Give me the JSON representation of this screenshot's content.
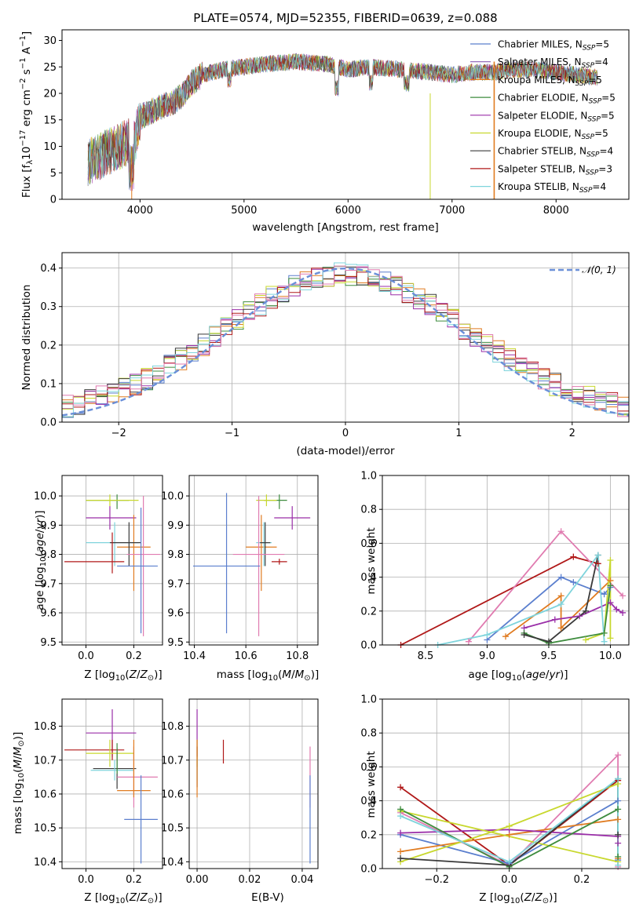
{
  "chart_data": [
    {
      "id": "spectrum",
      "type": "line",
      "title": "PLATE=0574, MJD=52355, FIBERID=0639, z=0.088",
      "xlabel": "wavelength [Angstrom, rest frame]",
      "ylabel": "Flux [f_λ10^-17 erg cm^-2 s^-1 A^-1]",
      "xlim": [
        3250,
        8700
      ],
      "ylim": [
        0,
        32
      ],
      "xticks": [
        4000,
        5000,
        6000,
        7000,
        8000
      ],
      "yticks": [
        0,
        5,
        10,
        15,
        20,
        25,
        30
      ],
      "grid": false,
      "legend_position": "top-right",
      "data_color": "#777777",
      "continuum": {
        "x": [
          3500,
          3600,
          3700,
          3800,
          3900,
          3950,
          4000,
          4100,
          4200,
          4300,
          4400,
          4500,
          4600,
          4800,
          5000,
          5200,
          5500,
          5800,
          6000,
          6200,
          6500,
          6800,
          7000,
          7200,
          7400,
          7600,
          7800,
          8000,
          8200,
          8400
        ],
        "y": [
          7,
          8,
          9,
          10,
          11,
          11,
          15.5,
          16.5,
          17.5,
          18,
          19.5,
          22,
          23.5,
          24.5,
          25,
          25.5,
          26,
          25.5,
          24.5,
          25,
          24.5,
          24,
          23.5,
          24,
          24,
          24.5,
          24.5,
          24,
          23.5,
          23
        ]
      },
      "series": [
        {
          "name": "Chabrier MILES, N_SSP=5",
          "color": "#5b7fce"
        },
        {
          "name": "Salpeter MILES, N_SSP=4",
          "color": "#8a5bb5"
        },
        {
          "name": "Kroupa MILES, N_SSP=5",
          "color": "#e07b20"
        },
        {
          "name": "Chabrier ELODIE, N_SSP=5",
          "color": "#3e8c3e"
        },
        {
          "name": "Salpeter ELODIE, N_SSP=5",
          "color": "#9a2ea8"
        },
        {
          "name": "Kroupa ELODIE, N_SSP=5",
          "color": "#c8d82e"
        },
        {
          "name": "Chabrier STELIB, N_SSP=4",
          "color": "#3a3a3a"
        },
        {
          "name": "Salpeter STELIB, N_SSP=3",
          "color": "#b01818"
        },
        {
          "name": "Kroupa STELIB, N_SSP=4",
          "color": "#7fd4dc"
        }
      ]
    },
    {
      "id": "residuals",
      "type": "histogram",
      "xlabel": "(data-model)/error",
      "ylabel": "Normed distribution",
      "xlim": [
        -2.5,
        2.5
      ],
      "ylim": [
        0,
        0.44
      ],
      "xticks": [
        -2,
        -1,
        0,
        1,
        2
      ],
      "yticks": [
        0.0,
        0.1,
        0.2,
        0.3,
        0.4
      ],
      "grid": true,
      "legend_position": "top-right",
      "reference_curve": {
        "name": "N(0,1)",
        "color": "#6a8fd8",
        "style": "dashed"
      },
      "bin_width": 0.1,
      "hist_colors": [
        "#5b7fce",
        "#e07b20",
        "#3e8c3e",
        "#9a2ea8",
        "#c8d82e",
        "#3a3a3a",
        "#b01818",
        "#7fd4dc",
        "#e07bb0"
      ]
    },
    {
      "id": "age-vs-Z",
      "type": "errorbar",
      "xlabel": "Z [log10(Z/Z☉)]",
      "ylabel": "age  [log10(age/yr)]",
      "xlim": [
        -0.1,
        0.32
      ],
      "ylim": [
        9.49,
        10.07
      ],
      "xticks": [
        0.0,
        0.2
      ],
      "yticks": [
        9.5,
        9.6,
        9.7,
        9.8,
        9.9,
        10.0
      ],
      "grid": true,
      "points": [
        {
          "x": 0.13,
          "y": 9.985,
          "xerr": [
            0.13,
            0.05
          ],
          "yerr": [
            0.03,
            0.02
          ],
          "color": "#3e8c3e"
        },
        {
          "x": 0.1,
          "y": 9.985,
          "xerr": [
            0.1,
            0.12
          ],
          "yerr": [
            0.02,
            0.02
          ],
          "color": "#c8d82e"
        },
        {
          "x": 0.1,
          "y": 9.925,
          "xerr": [
            0.1,
            0.11
          ],
          "yerr": [
            0.04,
            0.04
          ],
          "color": "#9a2ea8"
        },
        {
          "x": 0.2,
          "y": 9.825,
          "xerr": [
            0.07,
            0.07
          ],
          "yerr": [
            0.15,
            0.11
          ],
          "color": "#e07b20"
        },
        {
          "x": 0.12,
          "y": 9.84,
          "xerr": [
            0.12,
            0.1
          ],
          "yerr": [
            0.08,
            0.07
          ],
          "color": "#7fd4dc"
        },
        {
          "x": 0.18,
          "y": 9.84,
          "xerr": [
            0.08,
            0.05
          ],
          "yerr": [
            0.08,
            0.07
          ],
          "color": "#3a3a3a"
        },
        {
          "x": 0.24,
          "y": 9.8,
          "xerr": [
            0.07,
            0.07
          ],
          "yerr": [
            0.28,
            0.2
          ],
          "color": "#e07bb0"
        },
        {
          "x": 0.23,
          "y": 9.76,
          "xerr": [
            0.1,
            0.07
          ],
          "yerr": [
            0.23,
            0.2
          ],
          "color": "#5b7fce"
        },
        {
          "x": 0.11,
          "y": 9.775,
          "xerr": [
            0.2,
            0.05
          ],
          "yerr": [
            0.04,
            0.1
          ],
          "color": "#b01818"
        }
      ]
    },
    {
      "id": "age-vs-mass",
      "type": "errorbar",
      "xlabel": "mass [log10(M/M☉)]",
      "xlim": [
        10.38,
        10.88
      ],
      "ylim": [
        9.49,
        10.07
      ],
      "xticks": [
        10.4,
        10.6,
        10.8
      ],
      "yticks": [
        9.5,
        9.6,
        9.7,
        9.8,
        9.9,
        10.0
      ],
      "grid": true,
      "points": [
        {
          "x": 10.73,
          "y": 9.985,
          "xerr": [
            0.06,
            0.03
          ],
          "yerr": [
            0.03,
            0.02
          ],
          "color": "#3e8c3e"
        },
        {
          "x": 10.68,
          "y": 9.985,
          "xerr": [
            0.04,
            0.04
          ],
          "yerr": [
            0.02,
            0.02
          ],
          "color": "#c8d82e"
        },
        {
          "x": 10.78,
          "y": 9.925,
          "xerr": [
            0.07,
            0.07
          ],
          "yerr": [
            0.04,
            0.04
          ],
          "color": "#9a2ea8"
        },
        {
          "x": 10.66,
          "y": 9.825,
          "xerr": [
            0.06,
            0.06
          ],
          "yerr": [
            0.15,
            0.11
          ],
          "color": "#e07b20"
        },
        {
          "x": 10.67,
          "y": 9.84,
          "xerr": [
            0.03,
            0.03
          ],
          "yerr": [
            0.08,
            0.07
          ],
          "color": "#7fd4dc"
        },
        {
          "x": 10.675,
          "y": 9.84,
          "xerr": [
            0.02,
            0.02
          ],
          "yerr": [
            0.08,
            0.07
          ],
          "color": "#3a3a3a"
        },
        {
          "x": 10.65,
          "y": 9.8,
          "xerr": [
            0.1,
            0.1
          ],
          "yerr": [
            0.28,
            0.2
          ],
          "color": "#e07bb0"
        },
        {
          "x": 10.525,
          "y": 9.76,
          "xerr": [
            0.13,
            0.13
          ],
          "yerr": [
            0.23,
            0.25
          ],
          "color": "#5b7fce"
        },
        {
          "x": 10.73,
          "y": 9.775,
          "xerr": [
            0.03,
            0.03
          ],
          "yerr": [
            0.01,
            0.01
          ],
          "color": "#b01818"
        }
      ]
    },
    {
      "id": "weight-vs-age",
      "type": "line",
      "xlabel": "age  [log10(age/yr)]",
      "ylabel": "mass weight",
      "xlim": [
        8.15,
        10.15
      ],
      "ylim": [
        0,
        1.0
      ],
      "xticks": [
        8.5,
        9.0,
        9.5,
        10.0
      ],
      "yticks": [
        0.0,
        0.2,
        0.4,
        0.6,
        0.8,
        1.0
      ],
      "grid": true,
      "lines": [
        {
          "color": "#b01818",
          "x": [
            8.3,
            9.7,
            9.9
          ],
          "y": [
            0.0,
            0.52,
            0.48
          ]
        },
        {
          "color": "#e07bb0",
          "x": [
            8.85,
            9.6,
            10.1
          ],
          "y": [
            0.02,
            0.67,
            0.29
          ]
        },
        {
          "color": "#5b7fce",
          "x": [
            9.0,
            9.6,
            9.7,
            9.95,
            10.0
          ],
          "y": [
            0.03,
            0.4,
            0.37,
            0.3,
            0.34
          ]
        },
        {
          "color": "#e07b20",
          "x": [
            9.15,
            9.6,
            9.6,
            10.0
          ],
          "y": [
            0.05,
            0.29,
            0.1,
            0.38
          ]
        },
        {
          "color": "#9a2ea8",
          "x": [
            9.3,
            9.55,
            9.75,
            10.0,
            10.05,
            10.1
          ],
          "y": [
            0.1,
            0.15,
            0.17,
            0.25,
            0.21,
            0.19
          ]
        },
        {
          "color": "#c8d82e",
          "x": [
            9.8,
            9.95,
            10.0,
            10.0
          ],
          "y": [
            0.03,
            0.07,
            0.5,
            0.04
          ]
        },
        {
          "color": "#3e8c3e",
          "x": [
            9.3,
            9.5,
            9.95,
            10.0
          ],
          "y": [
            0.07,
            0.01,
            0.07,
            0.35
          ]
        },
        {
          "color": "#3a3a3a",
          "x": [
            9.3,
            9.5,
            9.8,
            9.9
          ],
          "y": [
            0.06,
            0.02,
            0.2,
            0.53
          ]
        },
        {
          "color": "#7fd4dc",
          "x": [
            8.6,
            9.0,
            9.6,
            9.9,
            9.95
          ],
          "y": [
            0.0,
            0.06,
            0.24,
            0.53,
            0.02
          ]
        }
      ]
    },
    {
      "id": "mass-vs-Z",
      "type": "errorbar",
      "xlabel": "Z [log10(Z/Z☉)]",
      "ylabel": "mass [log10(M/M☉)]",
      "xlim": [
        -0.1,
        0.32
      ],
      "ylim": [
        10.38,
        10.88
      ],
      "xticks": [
        0.0,
        0.2
      ],
      "yticks": [
        10.4,
        10.5,
        10.6,
        10.7,
        10.8
      ],
      "grid": true,
      "points": [
        {
          "x": 0.11,
          "y": 10.78,
          "xerr": [
            0.11,
            0.1
          ],
          "yerr": [
            0.07,
            0.07
          ],
          "color": "#9a2ea8"
        },
        {
          "x": 0.11,
          "y": 10.73,
          "xerr": [
            0.2,
            0.05
          ],
          "yerr": [
            0.03,
            0.03
          ],
          "color": "#b01818"
        },
        {
          "x": 0.1,
          "y": 10.72,
          "xerr": [
            0.1,
            0.1
          ],
          "yerr": [
            0.04,
            0.04
          ],
          "color": "#c8d82e"
        },
        {
          "x": 0.13,
          "y": 10.675,
          "xerr": [
            0.1,
            0.08
          ],
          "yerr": [
            0.06,
            0.06
          ],
          "color": "#3a3a3a"
        },
        {
          "x": 0.12,
          "y": 10.67,
          "xerr": [
            0.1,
            0.08
          ],
          "yerr": [
            0.03,
            0.03
          ],
          "color": "#7fd4dc"
        },
        {
          "x": 0.2,
          "y": 10.65,
          "xerr": [
            0.07,
            0.1
          ],
          "yerr": [
            0.09,
            0.09
          ],
          "color": "#e07bb0"
        },
        {
          "x": 0.2,
          "y": 10.61,
          "xerr": [
            0.07,
            0.07
          ],
          "yerr": [
            0.02,
            0.15
          ],
          "color": "#e07b20"
        },
        {
          "x": 0.23,
          "y": 10.525,
          "xerr": [
            0.07,
            0.07
          ],
          "yerr": [
            0.13,
            0.13
          ],
          "color": "#5b7fce"
        },
        {
          "x": 0.13,
          "y": 10.72,
          "xerr": [
            0.0,
            0.0
          ],
          "yerr": [
            0.06,
            0.03
          ],
          "color": "#3e8c3e"
        }
      ]
    },
    {
      "id": "mass-vs-ebv",
      "type": "errorbar",
      "xlabel": "E(B-V)",
      "xlim": [
        -0.003,
        0.046
      ],
      "ylim": [
        10.38,
        10.88
      ],
      "xticks": [
        0.0,
        0.02,
        0.04
      ],
      "yticks": [
        10.4,
        10.5,
        10.6,
        10.7,
        10.8
      ],
      "grid": true,
      "points": [
        {
          "x": 0.0,
          "y": 10.78,
          "xerr": [
            0,
            0
          ],
          "yerr": [
            0.07,
            0.07
          ],
          "color": "#9a2ea8"
        },
        {
          "x": 0.0,
          "y": 10.72,
          "xerr": [
            0,
            0
          ],
          "yerr": [
            0.04,
            0.04
          ],
          "color": "#c8d82e"
        },
        {
          "x": 0.0,
          "y": 10.68,
          "xerr": [
            0,
            0
          ],
          "yerr": [
            0.06,
            0.06
          ],
          "color": "#3a3a3a"
        },
        {
          "x": 0.0,
          "y": 10.67,
          "xerr": [
            0,
            0
          ],
          "yerr": [
            0.03,
            0.03
          ],
          "color": "#7fd4dc"
        },
        {
          "x": 0.0,
          "y": 10.61,
          "xerr": [
            0,
            0
          ],
          "yerr": [
            0.02,
            0.15
          ],
          "color": "#e07b20"
        },
        {
          "x": 0.01,
          "y": 10.725,
          "xerr": [
            0,
            0
          ],
          "yerr": [
            0.035,
            0.035
          ],
          "color": "#b01818"
        },
        {
          "x": 0.043,
          "y": 10.65,
          "xerr": [
            0,
            0
          ],
          "yerr": [
            0.09,
            0.09
          ],
          "color": "#e07bb0"
        },
        {
          "x": 0.043,
          "y": 10.525,
          "xerr": [
            0,
            0
          ],
          "yerr": [
            0.13,
            0.13
          ],
          "color": "#5b7fce"
        }
      ]
    },
    {
      "id": "weight-vs-Z",
      "type": "line",
      "xlabel": "Z [log10(Z/Z☉)]",
      "ylabel": "mass weight",
      "xlim": [
        -0.35,
        0.33
      ],
      "ylim": [
        0,
        1.0
      ],
      "xticks": [
        -0.2,
        0.0,
        0.2
      ],
      "yticks": [
        0.0,
        0.2,
        0.4,
        0.6,
        0.8,
        1.0
      ],
      "grid": true,
      "lines": [
        {
          "color": "#b01818",
          "x": [
            -0.3,
            0.0,
            0.3
          ],
          "y": [
            0.48,
            0.02,
            0.52
          ]
        },
        {
          "color": "#e07bb0",
          "x": [
            -0.3,
            0.0,
            0.3,
            0.3
          ],
          "y": [
            0.33,
            0.02,
            0.67,
            0.01
          ]
        },
        {
          "color": "#5b7fce",
          "x": [
            -0.3,
            0.0,
            0.3,
            0.3
          ],
          "y": [
            0.2,
            0.03,
            0.4,
            0.05
          ]
        },
        {
          "color": "#e07b20",
          "x": [
            -0.3,
            0.0,
            0.3,
            0.3
          ],
          "y": [
            0.1,
            0.2,
            0.29,
            0.06
          ]
        },
        {
          "color": "#9a2ea8",
          "x": [
            -0.3,
            0.0,
            0.3,
            0.3
          ],
          "y": [
            0.21,
            0.23,
            0.19,
            0.15
          ]
        },
        {
          "color": "#c8d82e",
          "x": [
            -0.3,
            0.0,
            0.3,
            0.3,
            -0.3
          ],
          "y": [
            0.04,
            0.25,
            0.5,
            0.04,
            0.34
          ]
        },
        {
          "color": "#3e8c3e",
          "x": [
            -0.3,
            0.0,
            0.3,
            0.3
          ],
          "y": [
            0.35,
            0.01,
            0.35,
            0.07
          ]
        },
        {
          "color": "#3a3a3a",
          "x": [
            -0.3,
            0.0,
            0.3,
            0.3
          ],
          "y": [
            0.06,
            0.02,
            0.53,
            0.2
          ]
        },
        {
          "color": "#7fd4dc",
          "x": [
            -0.3,
            0.0,
            0.3,
            0.3
          ],
          "y": [
            0.31,
            0.04,
            0.53,
            0.02
          ]
        }
      ]
    }
  ]
}
